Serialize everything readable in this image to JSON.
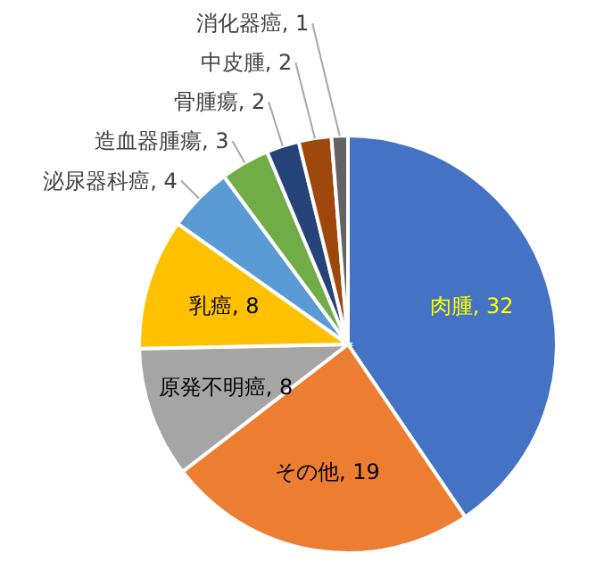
{
  "chart_data": {
    "type": "pie",
    "categories": [
      "肉腫",
      "その他",
      "原発不明癌",
      "乳癌",
      "泌尿器科癌",
      "造血器腫瘍",
      "骨腫瘍",
      "中皮腫",
      "消化器癌"
    ],
    "values": [
      32,
      19,
      8,
      8,
      4,
      3,
      2,
      2,
      1
    ],
    "value_labels": [
      ", 32",
      ", 19",
      ", 8",
      ", 8",
      ", 4",
      ", 3",
      ", 2",
      ", 2",
      ", 1"
    ],
    "colors": [
      "#4472c4",
      "#ed7d31",
      "#a5a5a5",
      "#ffc000",
      "#5b9bd5",
      "#70ad47",
      "#264478",
      "#9e480e",
      "#636363"
    ],
    "legend": false
  }
}
